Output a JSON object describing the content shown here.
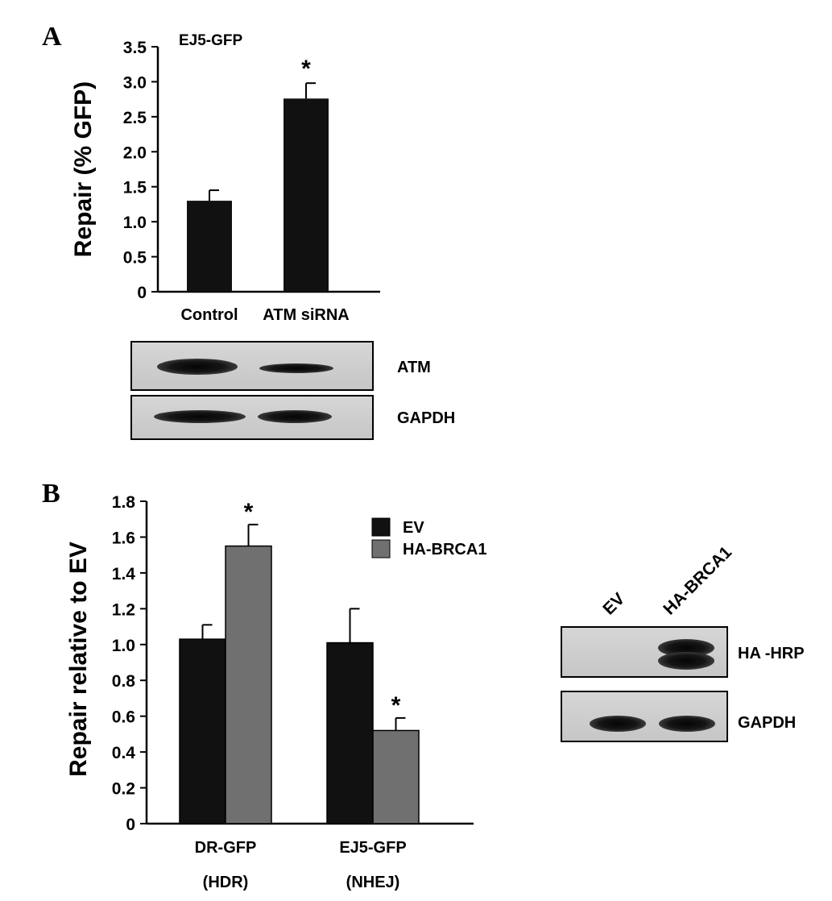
{
  "panel_a": {
    "letter": "A",
    "blot_labels": [
      "ATM",
      "GAPDH"
    ]
  },
  "panel_b": {
    "letter": "B",
    "blot_lanes": [
      "EV",
      "HA-BRCA1"
    ],
    "blot_labels": [
      "HA -HRP",
      "GAPDH"
    ]
  },
  "colors": {
    "ev": "#111111",
    "ha_brca1": "#707070",
    "bar_a": "#111111"
  },
  "chart_data": [
    {
      "type": "bar",
      "title": "EJ5-GFP",
      "xlabel": "",
      "ylabel": "Repair  (% GFP)",
      "categories": [
        "Control",
        "ATM siRNA"
      ],
      "values": [
        1.3,
        2.76
      ],
      "errors": [
        0.15,
        0.22
      ],
      "significance": [
        "",
        "*"
      ],
      "ylim": [
        0,
        3.5
      ],
      "yticks": [
        "0",
        "0.5",
        "1.0",
        "1.5",
        "2.0",
        "2.5",
        "3.0",
        "3.5"
      ],
      "grid": false
    },
    {
      "type": "bar",
      "title": "",
      "xlabel": "",
      "ylabel": "Repair relative to EV",
      "categories": [
        "DR-GFP",
        "EJ5-GFP"
      ],
      "category_sublabels": [
        "(HDR)",
        "(NHEJ)"
      ],
      "series": [
        {
          "name": "EV",
          "values": [
            1.03,
            1.01
          ],
          "errors": [
            0.08,
            0.19
          ],
          "significance": [
            "",
            ""
          ]
        },
        {
          "name": "HA-BRCA1",
          "values": [
            1.55,
            0.52
          ],
          "errors": [
            0.12,
            0.07
          ],
          "significance": [
            "*",
            "*"
          ]
        }
      ],
      "ylim": [
        0,
        1.8
      ],
      "yticks": [
        "0",
        "0.2",
        "0.4",
        "0.6",
        "0.8",
        "1.0",
        "1.2",
        "1.4",
        "1.6",
        "1.8"
      ],
      "legend": "top-right",
      "grid": false
    }
  ]
}
